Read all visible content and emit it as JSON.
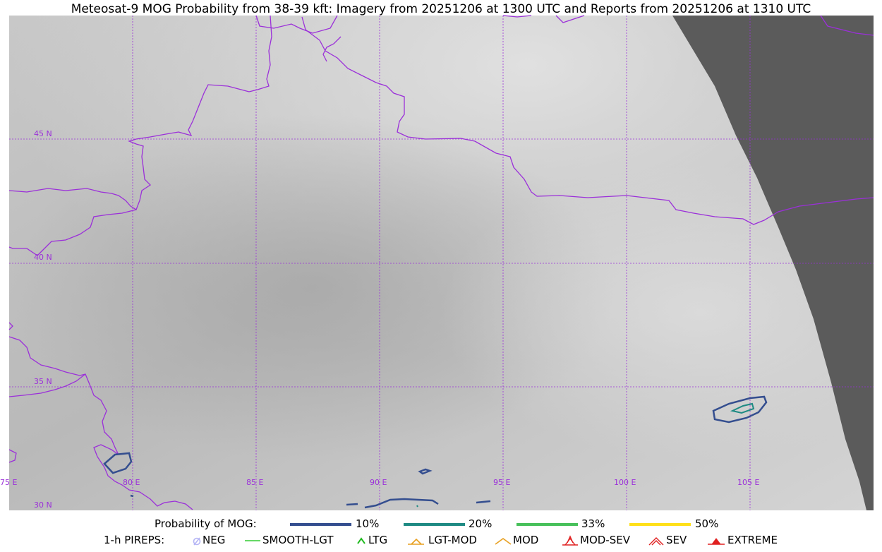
{
  "title": "Meteosat-9 MOG Probability from 38-39 kft: Imagery from 20251206 at 1300 UTC and Reports from 20251206 at 1310 UTC",
  "map": {
    "lon_labels": [
      "75 E",
      "80 E",
      "85 E",
      "90 E",
      "95 E",
      "100 E",
      "105 E"
    ],
    "lat_labels": [
      "45 N",
      "40 N",
      "35 N",
      "30 N"
    ],
    "colors": {
      "boundary": "#9b30d9",
      "grid": "#9b30d9",
      "no_data": "#5b5b5b",
      "prob_10": "#344e8f",
      "prob_20": "#1e8a83",
      "prob_33": "#47c05a",
      "prob_50": "#ffe019"
    }
  },
  "legend": {
    "prob_title": "Probability of MOG:",
    "prob_items": [
      {
        "label": "10%",
        "color": "#344e8f"
      },
      {
        "label": "20%",
        "color": "#1e8a83"
      },
      {
        "label": "33%",
        "color": "#47c05a"
      },
      {
        "label": "50%",
        "color": "#ffe019"
      }
    ],
    "pirep_title": "1-h PIREPS:",
    "pirep_items": [
      {
        "label": "NEG",
        "icon": "neg-icon",
        "color": "#b5b5f5"
      },
      {
        "label": "SMOOTH-LGT",
        "icon": "smooth-lgt-icon",
        "color": "#33cc33"
      },
      {
        "label": "LTG",
        "icon": "ltg-icon",
        "color": "#22bb22"
      },
      {
        "label": "LGT-MOD",
        "icon": "lgt-mod-icon",
        "color": "#e8a020"
      },
      {
        "label": "MOD",
        "icon": "mod-icon",
        "color": "#e8a020"
      },
      {
        "label": "MOD-SEV",
        "icon": "mod-sev-icon",
        "color": "#e02020"
      },
      {
        "label": "SEV",
        "icon": "sev-icon",
        "color": "#e02020"
      },
      {
        "label": "EXTREME",
        "icon": "extreme-icon",
        "color": "#e02020"
      }
    ]
  }
}
